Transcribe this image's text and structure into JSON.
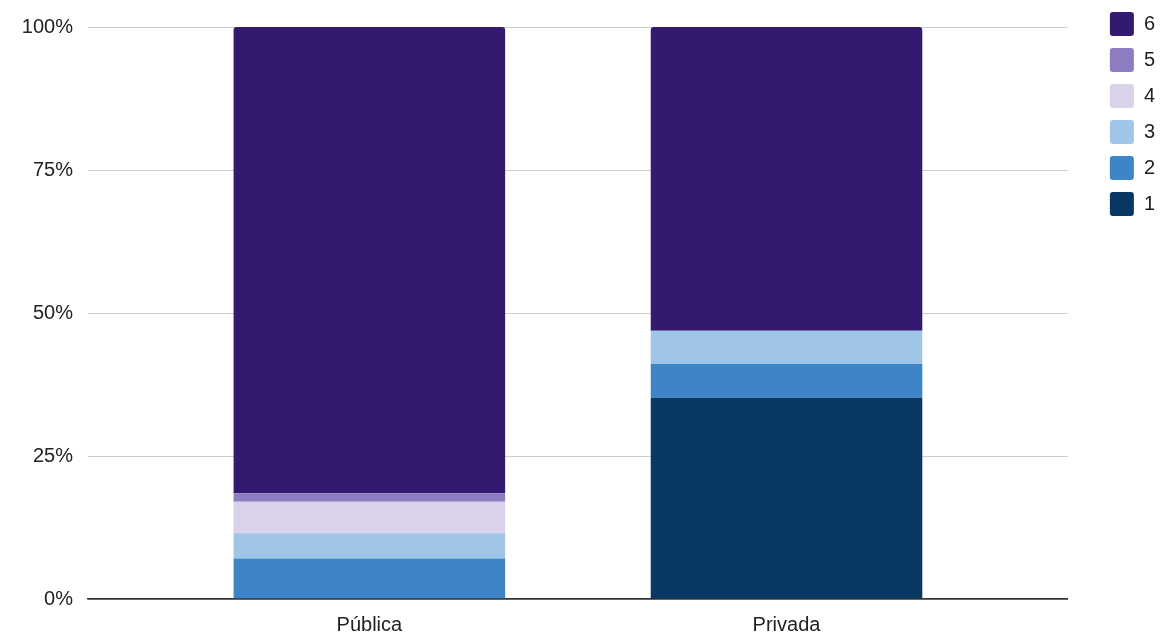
{
  "chart_data": {
    "type": "bar",
    "categories": [
      "Pública",
      "Privada"
    ],
    "series": [
      {
        "name": "1",
        "color": "#083763",
        "values": [
          0,
          35.2
        ]
      },
      {
        "name": "2",
        "color": "#3d85c6",
        "values": [
          7.1,
          5.9
        ]
      },
      {
        "name": "3",
        "color": "#9fc5e8",
        "values": [
          4.4,
          5.8
        ]
      },
      {
        "name": "4",
        "color": "#d9d2e9",
        "values": [
          5.5,
          0
        ]
      },
      {
        "name": "5",
        "color": "#8e7cc3",
        "values": [
          1.5,
          0
        ]
      },
      {
        "name": "6",
        "color": "#33196f",
        "values": [
          81.5,
          53.1
        ]
      }
    ],
    "stacked": true,
    "ylim": [
      0,
      100
    ],
    "yticks": [
      {
        "value": 0,
        "label": "0%"
      },
      {
        "value": 25,
        "label": "25%"
      },
      {
        "value": 50,
        "label": "50%"
      },
      {
        "value": 75,
        "label": "75%"
      },
      {
        "value": 100,
        "label": "100%"
      }
    ],
    "grid": "y",
    "legend": "top right"
  }
}
